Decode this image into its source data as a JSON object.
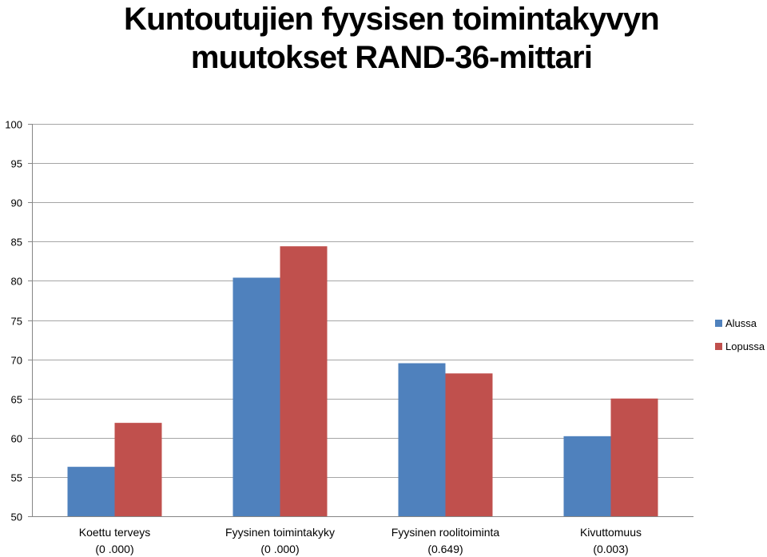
{
  "title_lines": [
    "Kuntoutujien fyysisen toimintakyvyn",
    "muutokset RAND-36-mittari"
  ],
  "chart_data": {
    "type": "bar",
    "categories": [
      [
        "Koettu terveys",
        "(0 .000)"
      ],
      [
        "Fyysinen toimintakyky",
        "(0 .000)"
      ],
      [
        "Fyysinen roolitoiminta",
        "(0.649)"
      ],
      [
        "Kivuttomuus",
        "(0.003)"
      ]
    ],
    "series": [
      {
        "name": "Alussa",
        "color": "#4F81BD",
        "values": [
          56.3,
          80.4,
          69.5,
          60.2
        ]
      },
      {
        "name": "Lopussa",
        "color": "#C0504D",
        "values": [
          61.9,
          84.4,
          68.2,
          65.0
        ]
      }
    ],
    "ylim": [
      50,
      100
    ],
    "yticks": [
      50,
      55,
      60,
      65,
      70,
      75,
      80,
      85,
      90,
      95,
      100
    ],
    "grid": true,
    "legend": "right"
  }
}
